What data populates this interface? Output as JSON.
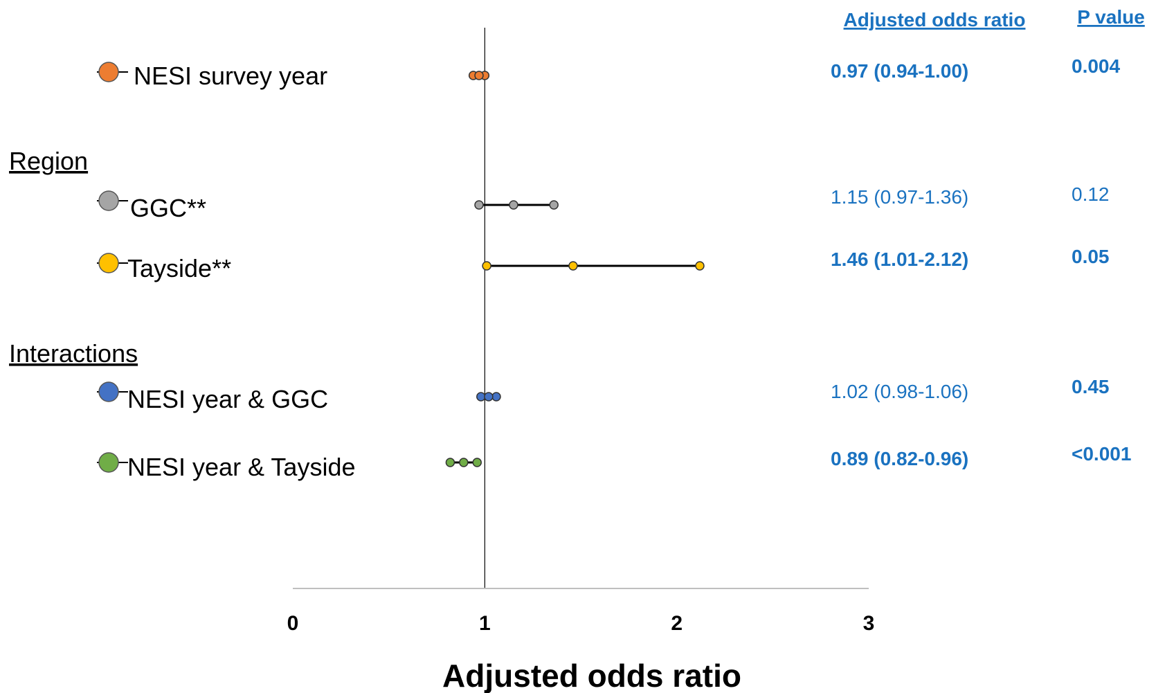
{
  "chart_data": {
    "type": "forest",
    "xlabel": "Adjusted odds ratio",
    "xlim": [
      0,
      3
    ],
    "x_ticks": [
      "0",
      "1",
      "2",
      "3"
    ],
    "reference_line": 1,
    "text_color": "#1a72c0",
    "headers": {
      "or": "Adjusted odds ratio",
      "p": "P value"
    },
    "groups": [
      {
        "label": "Region"
      },
      {
        "label": "Interactions"
      }
    ],
    "rows": [
      {
        "label": "NESI survey year",
        "or": 0.97,
        "ci_low": 0.94,
        "ci_high": 1.0,
        "or_text": "0.97 (0.94-1.00)",
        "p_text": "0.004",
        "bold": true,
        "color": "#ed7d31"
      },
      {
        "label": "GGC**",
        "or": 1.15,
        "ci_low": 0.97,
        "ci_high": 1.36,
        "or_text": "1.15 (0.97-1.36)",
        "p_text": "0.12",
        "bold": false,
        "color": "#a5a5a5"
      },
      {
        "label": "Tayside**",
        "or": 1.46,
        "ci_low": 1.01,
        "ci_high": 2.12,
        "or_text": "1.46 (1.01-2.12)",
        "p_text": "0.05",
        "bold": true,
        "color": "#ffc000"
      },
      {
        "label": "NESI year & GGC",
        "or": 1.02,
        "ci_low": 0.98,
        "ci_high": 1.06,
        "or_text": "1.02 (0.98-1.06)",
        "p_text": "0.45",
        "bold": false,
        "color": "#4472c4"
      },
      {
        "label": "NESI year & Tayside",
        "or": 0.89,
        "ci_low": 0.82,
        "ci_high": 0.96,
        "or_text": "0.89 (0.82-0.96)",
        "p_text": "<0.001",
        "bold": true,
        "color": "#70ad47"
      }
    ]
  }
}
